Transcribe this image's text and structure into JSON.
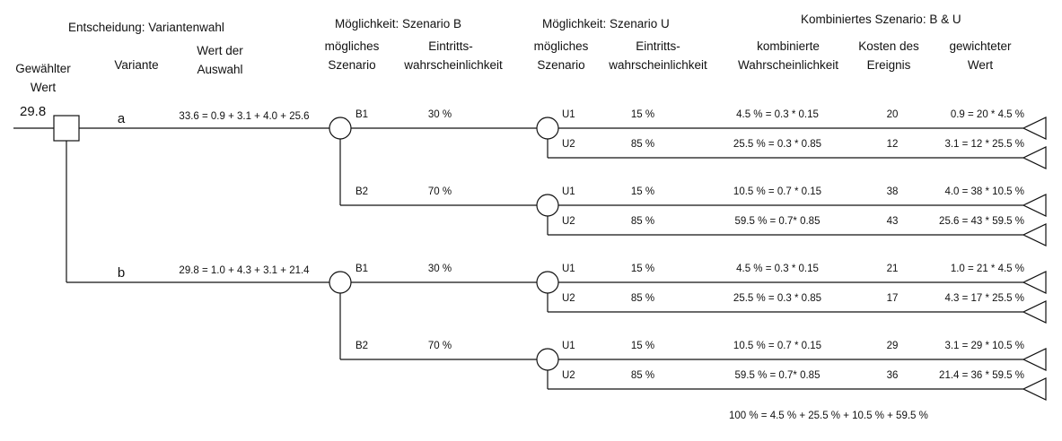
{
  "headers": {
    "decision": "Entscheidung: Variantenwahl",
    "possibility_b": "Möglichkeit: Szenario B",
    "possibility_u": "Möglichkeit: Szenario U",
    "combined": "Kombiniertes Szenario: B & U",
    "chosen_value": [
      "Gewählter",
      "Wert"
    ],
    "variant": "Variante",
    "value_of_choice": [
      "Wert der",
      "Auswahl"
    ],
    "possible_scenario_b": [
      "mögliches",
      "Szenario"
    ],
    "probability_b": [
      "Eintritts-",
      "wahrscheinlichkeit"
    ],
    "possible_scenario_u": [
      "mögliches",
      "Szenario"
    ],
    "probability_u": [
      "Eintritts-",
      "wahrscheinlichkeit"
    ],
    "combined_probability": [
      "kombinierte",
      "Wahrscheinlichkeit"
    ],
    "event_cost": [
      "Kosten des",
      "Ereignis"
    ],
    "weighted_value": [
      "gewichteter",
      "Wert"
    ]
  },
  "chosen_value": "29.8",
  "variants": [
    {
      "label": "a",
      "value": "33.6 = 0.9 + 3.1 + 4.0 + 25.6",
      "b_scenarios": [
        {
          "label": "B1",
          "probability": "30 %",
          "u_scenarios": [
            {
              "label": "U1",
              "probability": "15 %",
              "combined": "4.5 % = 0.3 * 0.15",
              "cost": "20",
              "weighted": "0.9 = 20 * 4.5 %"
            },
            {
              "label": "U2",
              "probability": "85 %",
              "combined": "25.5 % = 0.3 * 0.85",
              "cost": "12",
              "weighted": "3.1 = 12 * 25.5 %"
            }
          ]
        },
        {
          "label": "B2",
          "probability": "70 %",
          "u_scenarios": [
            {
              "label": "U1",
              "probability": "15 %",
              "combined": "10.5 % = 0.7 * 0.15",
              "cost": "38",
              "weighted": "4.0 = 38 * 10.5 %"
            },
            {
              "label": "U2",
              "probability": "85 %",
              "combined": "59.5 % = 0.7* 0.85",
              "cost": "43",
              "weighted": "25.6 = 43 * 59.5 %"
            }
          ]
        }
      ]
    },
    {
      "label": "b",
      "value": "29.8 = 1.0 + 4.3 + 3.1 + 21.4",
      "b_scenarios": [
        {
          "label": "B1",
          "probability": "30 %",
          "u_scenarios": [
            {
              "label": "U1",
              "probability": "15 %",
              "combined": "4.5 % = 0.3 * 0.15",
              "cost": "21",
              "weighted": "1.0  = 21 * 4.5 %"
            },
            {
              "label": "U2",
              "probability": "85 %",
              "combined": "25.5 % = 0.3 * 0.85",
              "cost": "17",
              "weighted": "4.3 = 17 * 25.5 %"
            }
          ]
        },
        {
          "label": "B2",
          "probability": "70 %",
          "u_scenarios": [
            {
              "label": "U1",
              "probability": "15 %",
              "combined": "10.5 % = 0.7 * 0.15",
              "cost": "29",
              "weighted": "3.1 = 29 * 10.5 %"
            },
            {
              "label": "U2",
              "probability": "85 %",
              "combined": "59.5 % = 0.7* 0.85",
              "cost": "36",
              "weighted": "21.4 = 36 * 59.5 %"
            }
          ]
        }
      ]
    }
  ],
  "footer_sum": "100 % = 4.5 % + 25.5 % + 10.5 % + 59.5 %"
}
